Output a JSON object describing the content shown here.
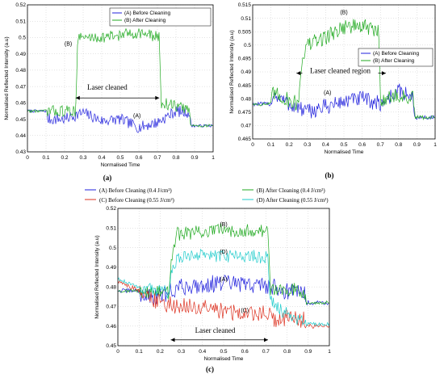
{
  "captions": [
    "(a)",
    "(b)",
    "(c)"
  ],
  "mid_legend": [
    {
      "label": "(A) Before Cleaning (0.4 J/cm²)",
      "color": "#2222dd"
    },
    {
      "label": "(B) After Cleaning (0.4 J/cm²)",
      "color": "#22aa22"
    },
    {
      "label": "(C) Before Cleaning (0.55 J/cm²)",
      "color": "#dd3322"
    },
    {
      "label": "(D) After Cleaning (0.55 J/cm²)",
      "color": "#22cccc"
    }
  ],
  "chart_data": [
    {
      "type": "line",
      "panel": "(a)",
      "xlabel": "Normalised Time",
      "ylabel": "Normalised Reflected Intensity (a.u)",
      "xlim": [
        0,
        1
      ],
      "ylim": [
        0.43,
        0.52
      ],
      "xticks": [
        "0",
        "0.1",
        "0.2",
        "0.3",
        "0.4",
        "0.5",
        "0.6",
        "0.7",
        "0.8",
        "0.9",
        "1"
      ],
      "yticks": [
        "0.43",
        "0.44",
        "0.45",
        "0.46",
        "0.47",
        "0.48",
        "0.49",
        "0.5",
        "0.51",
        "0.52"
      ],
      "grid": true,
      "legend": {
        "position": "top-right",
        "entries": [
          "(A) Before Cleaning",
          "(B) After Cleaning"
        ]
      },
      "annotations": [
        {
          "text": "Laser cleaned",
          "x": 0.43,
          "y": 0.468,
          "arrow_from": 0.26,
          "arrow_to": 0.71,
          "arrow_y": 0.463
        },
        {
          "text": "(B)",
          "x": 0.22,
          "y": 0.495
        },
        {
          "text": "(A)",
          "x": 0.59,
          "y": 0.451
        }
      ],
      "series": [
        {
          "name": "(A) Before Cleaning",
          "color": "#2222dd",
          "noise": 0.0035,
          "points": [
            [
              0,
              0.455
            ],
            [
              0.1,
              0.455
            ],
            [
              0.11,
              0.45
            ],
            [
              0.2,
              0.45
            ],
            [
              0.3,
              0.454
            ],
            [
              0.4,
              0.449
            ],
            [
              0.5,
              0.45
            ],
            [
              0.6,
              0.445
            ],
            [
              0.7,
              0.448
            ],
            [
              0.8,
              0.455
            ],
            [
              0.87,
              0.454
            ],
            [
              0.88,
              0.446
            ],
            [
              1,
              0.446
            ]
          ]
        },
        {
          "name": "(B) After Cleaning",
          "color": "#22aa22",
          "noise": 0.0035,
          "points": [
            [
              0,
              0.455
            ],
            [
              0.1,
              0.455
            ],
            [
              0.11,
              0.455
            ],
            [
              0.26,
              0.455
            ],
            [
              0.27,
              0.5
            ],
            [
              0.4,
              0.5
            ],
            [
              0.6,
              0.503
            ],
            [
              0.71,
              0.5
            ],
            [
              0.72,
              0.46
            ],
            [
              0.8,
              0.458
            ],
            [
              0.87,
              0.456
            ],
            [
              0.88,
              0.446
            ],
            [
              1,
              0.446
            ]
          ]
        }
      ]
    },
    {
      "type": "line",
      "panel": "(b)",
      "xlabel": "Normalised Time",
      "ylabel": "Normalised Reflected Intensity (a.u)",
      "xlim": [
        0,
        1
      ],
      "ylim": [
        0.465,
        0.515
      ],
      "xticks": [
        "0",
        "0.1",
        "0.2",
        "0.3",
        "0.4",
        "0.5",
        "0.6",
        "0.7",
        "0.8",
        "0.9",
        "1"
      ],
      "yticks": [
        "0.465",
        "0.47",
        "0.475",
        "0.48",
        "0.485",
        "0.49",
        "0.495",
        "0.5",
        "0.505",
        "0.51",
        "0.515"
      ],
      "grid": true,
      "legend": {
        "position": "right",
        "entries": [
          "(A) Before Cleaning",
          "(B) After Cleaning"
        ]
      },
      "annotations": [
        {
          "text": "Laser cleaned region",
          "x": 0.48,
          "y": 0.4895,
          "arrow_from": 0.24,
          "arrow_to": 0.73,
          "arrow_y": 0.4895
        },
        {
          "text": "(B)",
          "x": 0.5,
          "y": 0.5115
        },
        {
          "text": "(A)",
          "x": 0.41,
          "y": 0.4815
        }
      ],
      "series": [
        {
          "name": "(A) Before Cleaning",
          "color": "#2222dd",
          "noise": 0.003,
          "points": [
            [
              0,
              0.478
            ],
            [
              0.1,
              0.478
            ],
            [
              0.11,
              0.482
            ],
            [
              0.2,
              0.478
            ],
            [
              0.3,
              0.475
            ],
            [
              0.4,
              0.477
            ],
            [
              0.5,
              0.479
            ],
            [
              0.6,
              0.48
            ],
            [
              0.7,
              0.478
            ],
            [
              0.8,
              0.483
            ],
            [
              0.88,
              0.48
            ],
            [
              0.89,
              0.473
            ],
            [
              1,
              0.473
            ]
          ]
        },
        {
          "name": "(B) After Cleaning",
          "color": "#22aa22",
          "noise": 0.003,
          "points": [
            [
              0,
              0.478
            ],
            [
              0.1,
              0.478
            ],
            [
              0.11,
              0.482
            ],
            [
              0.25,
              0.478
            ],
            [
              0.27,
              0.495
            ],
            [
              0.3,
              0.5
            ],
            [
              0.4,
              0.503
            ],
            [
              0.5,
              0.507
            ],
            [
              0.6,
              0.507
            ],
            [
              0.69,
              0.505
            ],
            [
              0.7,
              0.48
            ],
            [
              0.8,
              0.481
            ],
            [
              0.88,
              0.48
            ],
            [
              0.89,
              0.473
            ],
            [
              1,
              0.473
            ]
          ]
        }
      ]
    },
    {
      "type": "line",
      "panel": "(c)",
      "xlabel": "Normalised Time",
      "ylabel": "Normalised Reflected Intensity (a.u)",
      "xlim": [
        0,
        1
      ],
      "ylim": [
        0.45,
        0.52
      ],
      "xticks": [
        "0",
        "0.1",
        "0.2",
        "0.3",
        "0.4",
        "0.5",
        "0.6",
        "0.7",
        "0.8",
        "0.9",
        "1"
      ],
      "yticks": [
        "0.45",
        "0.46",
        "0.47",
        "0.48",
        "0.49",
        "0.5",
        "0.51",
        "0.52"
      ],
      "grid": true,
      "annotations": [
        {
          "text": "Laser cleaned",
          "x": 0.46,
          "y": 0.4565,
          "arrow_from": 0.25,
          "arrow_to": 0.71,
          "arrow_y": 0.453
        },
        {
          "text": "(B)",
          "x": 0.5,
          "y": 0.511
        },
        {
          "text": "(D)",
          "x": 0.5,
          "y": 0.497
        },
        {
          "text": "(A)",
          "x": 0.5,
          "y": 0.483
        },
        {
          "text": "(C)",
          "x": 0.6,
          "y": 0.467
        }
      ],
      "series": [
        {
          "name": "(A) Before Cleaning (0.4 J/cm²)",
          "color": "#2222dd",
          "noise": 0.0045,
          "points": [
            [
              0,
              0.478
            ],
            [
              0.1,
              0.478
            ],
            [
              0.11,
              0.476
            ],
            [
              0.2,
              0.475
            ],
            [
              0.25,
              0.478
            ],
            [
              0.3,
              0.48
            ],
            [
              0.4,
              0.481
            ],
            [
              0.5,
              0.482
            ],
            [
              0.6,
              0.481
            ],
            [
              0.7,
              0.481
            ],
            [
              0.8,
              0.478
            ],
            [
              0.88,
              0.478
            ],
            [
              0.89,
              0.472
            ],
            [
              1,
              0.472
            ]
          ]
        },
        {
          "name": "(B) After Cleaning (0.4 J/cm²)",
          "color": "#22aa22",
          "noise": 0.0035,
          "points": [
            [
              0,
              0.478
            ],
            [
              0.1,
              0.478
            ],
            [
              0.24,
              0.477
            ],
            [
              0.26,
              0.5
            ],
            [
              0.28,
              0.507
            ],
            [
              0.4,
              0.508
            ],
            [
              0.5,
              0.509
            ],
            [
              0.6,
              0.509
            ],
            [
              0.71,
              0.508
            ],
            [
              0.72,
              0.479
            ],
            [
              0.8,
              0.479
            ],
            [
              0.88,
              0.478
            ],
            [
              0.89,
              0.472
            ],
            [
              1,
              0.472
            ]
          ]
        },
        {
          "name": "(C) Before Cleaning (0.55 J/cm²)",
          "color": "#dd3322",
          "noise": 0.0045,
          "points": [
            [
              0,
              0.483
            ],
            [
              0.1,
              0.478
            ],
            [
              0.11,
              0.476
            ],
            [
              0.2,
              0.472
            ],
            [
              0.3,
              0.47
            ],
            [
              0.4,
              0.469
            ],
            [
              0.5,
              0.468
            ],
            [
              0.6,
              0.466
            ],
            [
              0.7,
              0.467
            ],
            [
              0.75,
              0.462
            ],
            [
              0.8,
              0.464
            ],
            [
              0.88,
              0.463
            ],
            [
              0.89,
              0.46
            ],
            [
              1,
              0.46
            ]
          ]
        },
        {
          "name": "(D) After Cleaning (0.55 J/cm²)",
          "color": "#22cccc",
          "noise": 0.0035,
          "points": [
            [
              0,
              0.484
            ],
            [
              0.1,
              0.48
            ],
            [
              0.24,
              0.477
            ],
            [
              0.26,
              0.492
            ],
            [
              0.3,
              0.495
            ],
            [
              0.4,
              0.496
            ],
            [
              0.5,
              0.496
            ],
            [
              0.6,
              0.496
            ],
            [
              0.71,
              0.495
            ],
            [
              0.72,
              0.473
            ],
            [
              0.8,
              0.466
            ],
            [
              0.88,
              0.462
            ],
            [
              0.89,
              0.461
            ],
            [
              1,
              0.461
            ]
          ]
        }
      ]
    }
  ]
}
